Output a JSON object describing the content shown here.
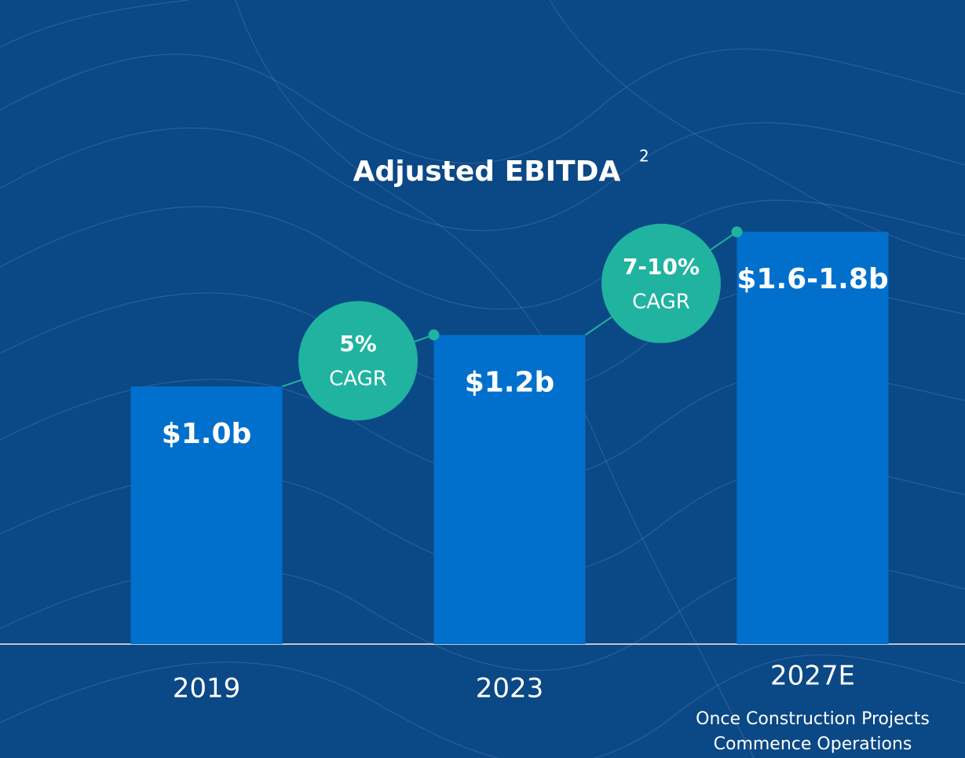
{
  "chart_data": {
    "type": "bar",
    "title": "Adjusted EBITDA",
    "title_superscript": "2",
    "categories": [
      "2019",
      "2023",
      "2027E"
    ],
    "category_note": [
      "Once Construction Projects",
      "Commence Operations"
    ],
    "values": [
      1.0,
      1.2,
      1.6
    ],
    "value_labels": [
      "$1.0b",
      "$1.2b",
      "$1.6-1.8b"
    ],
    "color": "#0070cc",
    "ylim": [
      0,
      2
    ],
    "annotations": [
      {
        "rate": "5%",
        "label": "CAGR"
      },
      {
        "rate": "7-10%",
        "label": "CAGR"
      }
    ],
    "annotation_color": "#1fb3a0"
  }
}
